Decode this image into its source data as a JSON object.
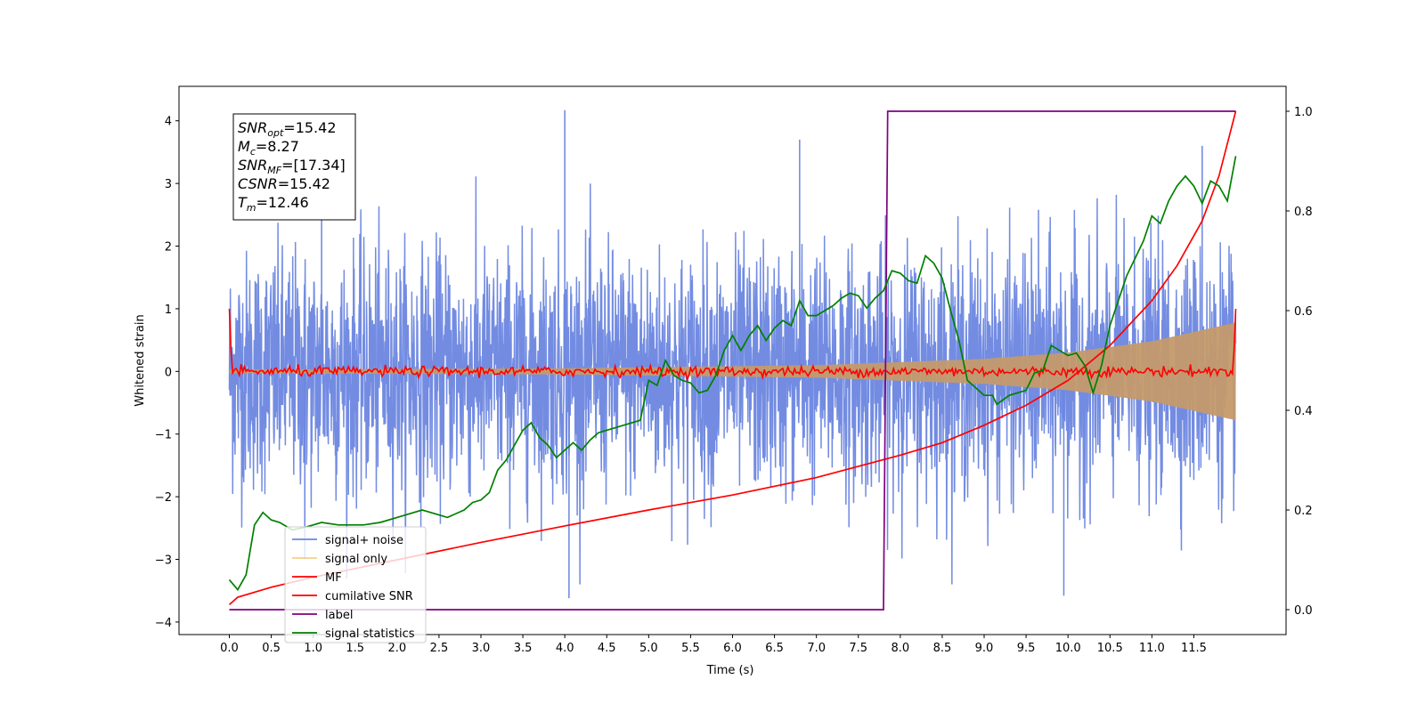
{
  "chart_data": {
    "type": "line",
    "title": "",
    "xlabel": "Time (s)",
    "ylabel": "Whitened strain",
    "y2label": "",
    "xlim": [
      -0.6,
      12.6
    ],
    "ylim": [
      -4.2,
      4.55
    ],
    "y2lim": [
      -0.05,
      1.05
    ],
    "xticks": [
      0.0,
      0.5,
      1.0,
      1.5,
      2.0,
      2.5,
      3.0,
      3.5,
      4.0,
      4.5,
      5.0,
      5.5,
      6.0,
      6.5,
      7.0,
      7.5,
      8.0,
      8.5,
      9.0,
      9.5,
      10.0,
      10.5,
      11.0,
      11.5
    ],
    "xtick_labels": [
      "0.0",
      "0.5",
      "1.0",
      "1.5",
      "2.0",
      "2.5",
      "3.0",
      "3.5",
      "4.0",
      "4.5",
      "5.0",
      "5.5",
      "6.0",
      "6.5",
      "7.0",
      "7.5",
      "8.0",
      "8.5",
      "9.0",
      "9.5",
      "10.0",
      "10.5",
      "11.0",
      "11.5"
    ],
    "yticks": [
      -4,
      -3,
      -2,
      -1,
      0,
      1,
      2,
      3,
      4
    ],
    "ytick_labels": [
      "−4",
      "−3",
      "−2",
      "−1",
      "0",
      "1",
      "2",
      "3",
      "4"
    ],
    "y2ticks": [
      0.0,
      0.2,
      0.4,
      0.6,
      0.8,
      1.0
    ],
    "y2tick_labels": [
      "0.0",
      "0.2",
      "0.4",
      "0.6",
      "0.8",
      "1.0"
    ],
    "grid": false,
    "legend_placement": "lower-left",
    "series": [
      {
        "name": "signal+ noise",
        "axis": "left",
        "color": "#6b86e0",
        "description_values": "dense noise band, typical range -2.5 to 2.5, spikes up to 4.17 at t=4.0 and down to -3.6",
        "noise_amplitude": 1.0,
        "peak_values": [
          [
            4.0,
            4.17
          ],
          [
            4.05,
            -3.62
          ],
          [
            9.95,
            -3.58
          ],
          [
            1.1,
            3.7
          ],
          [
            6.8,
            3.7
          ],
          [
            11.6,
            3.6
          ],
          [
            0.9,
            -3.0
          ]
        ]
      },
      {
        "name": "signal only",
        "axis": "left",
        "color": "#f2c36b",
        "envelope": [
          [
            0.0,
            0.03
          ],
          [
            4.0,
            0.05
          ],
          [
            7.0,
            0.1
          ],
          [
            9.0,
            0.2
          ],
          [
            10.0,
            0.3
          ],
          [
            11.0,
            0.48
          ],
          [
            12.0,
            0.78
          ]
        ]
      },
      {
        "name": "MF",
        "axis": "left",
        "color": "#ff0000",
        "points": [
          [
            0.0,
            1.0
          ],
          [
            0.03,
            0.0
          ],
          [
            11.97,
            0.0
          ],
          [
            12.0,
            1.0
          ]
        ],
        "noise_amplitude": 0.04
      },
      {
        "name": "cumilative SNR",
        "axis": "right",
        "color": "#ff0000",
        "points": [
          [
            0.0,
            0.01
          ],
          [
            0.1,
            0.025
          ],
          [
            0.5,
            0.045
          ],
          [
            1.0,
            0.065
          ],
          [
            2.0,
            0.1
          ],
          [
            3.0,
            0.135
          ],
          [
            4.0,
            0.168
          ],
          [
            5.0,
            0.2
          ],
          [
            6.0,
            0.23
          ],
          [
            7.0,
            0.265
          ],
          [
            8.0,
            0.31
          ],
          [
            8.5,
            0.335
          ],
          [
            9.0,
            0.37
          ],
          [
            9.5,
            0.41
          ],
          [
            10.0,
            0.46
          ],
          [
            10.5,
            0.53
          ],
          [
            11.0,
            0.62
          ],
          [
            11.3,
            0.69
          ],
          [
            11.6,
            0.78
          ],
          [
            11.8,
            0.87
          ],
          [
            12.0,
            1.0
          ]
        ]
      },
      {
        "name": "label",
        "axis": "right",
        "color": "#800080",
        "points": [
          [
            0.0,
            0.0
          ],
          [
            7.8,
            0.0
          ],
          [
            7.85,
            1.0
          ],
          [
            12.0,
            1.0
          ]
        ]
      },
      {
        "name": "signal statistics",
        "axis": "right",
        "color": "#008000",
        "points": [
          [
            0.0,
            0.06
          ],
          [
            0.1,
            0.04
          ],
          [
            0.2,
            0.07
          ],
          [
            0.3,
            0.17
          ],
          [
            0.4,
            0.195
          ],
          [
            0.5,
            0.18
          ],
          [
            0.6,
            0.175
          ],
          [
            0.75,
            0.16
          ],
          [
            0.9,
            0.165
          ],
          [
            1.0,
            0.17
          ],
          [
            1.1,
            0.175
          ],
          [
            1.3,
            0.17
          ],
          [
            1.6,
            0.17
          ],
          [
            1.8,
            0.175
          ],
          [
            2.0,
            0.185
          ],
          [
            2.2,
            0.195
          ],
          [
            2.3,
            0.2
          ],
          [
            2.5,
            0.19
          ],
          [
            2.6,
            0.185
          ],
          [
            2.8,
            0.2
          ],
          [
            2.9,
            0.215
          ],
          [
            3.0,
            0.22
          ],
          [
            3.1,
            0.235
          ],
          [
            3.2,
            0.28
          ],
          [
            3.3,
            0.3
          ],
          [
            3.5,
            0.36
          ],
          [
            3.6,
            0.375
          ],
          [
            3.7,
            0.345
          ],
          [
            3.8,
            0.33
          ],
          [
            3.9,
            0.305
          ],
          [
            4.0,
            0.32
          ],
          [
            4.1,
            0.335
          ],
          [
            4.2,
            0.32
          ],
          [
            4.3,
            0.34
          ],
          [
            4.4,
            0.355
          ],
          [
            4.5,
            0.36
          ],
          [
            4.7,
            0.37
          ],
          [
            4.9,
            0.38
          ],
          [
            5.0,
            0.46
          ],
          [
            5.1,
            0.45
          ],
          [
            5.2,
            0.5
          ],
          [
            5.3,
            0.47
          ],
          [
            5.4,
            0.46
          ],
          [
            5.5,
            0.455
          ],
          [
            5.6,
            0.435
          ],
          [
            5.7,
            0.44
          ],
          [
            5.8,
            0.47
          ],
          [
            5.9,
            0.52
          ],
          [
            6.0,
            0.55
          ],
          [
            6.1,
            0.52
          ],
          [
            6.2,
            0.55
          ],
          [
            6.3,
            0.57
          ],
          [
            6.4,
            0.54
          ],
          [
            6.5,
            0.565
          ],
          [
            6.6,
            0.58
          ],
          [
            6.7,
            0.57
          ],
          [
            6.8,
            0.62
          ],
          [
            6.9,
            0.59
          ],
          [
            7.0,
            0.59
          ],
          [
            7.1,
            0.6
          ],
          [
            7.2,
            0.61
          ],
          [
            7.3,
            0.625
          ],
          [
            7.4,
            0.635
          ],
          [
            7.5,
            0.63
          ],
          [
            7.6,
            0.605
          ],
          [
            7.7,
            0.625
          ],
          [
            7.8,
            0.64
          ],
          [
            7.9,
            0.68
          ],
          [
            8.0,
            0.675
          ],
          [
            8.1,
            0.66
          ],
          [
            8.2,
            0.655
          ],
          [
            8.3,
            0.71
          ],
          [
            8.4,
            0.695
          ],
          [
            8.5,
            0.665
          ],
          [
            8.6,
            0.6
          ],
          [
            8.7,
            0.54
          ],
          [
            8.8,
            0.46
          ],
          [
            8.9,
            0.445
          ],
          [
            9.0,
            0.43
          ],
          [
            9.1,
            0.43
          ],
          [
            9.15,
            0.412
          ],
          [
            9.3,
            0.43
          ],
          [
            9.5,
            0.44
          ],
          [
            9.6,
            0.475
          ],
          [
            9.7,
            0.48
          ],
          [
            9.8,
            0.53
          ],
          [
            9.9,
            0.52
          ],
          [
            10.0,
            0.51
          ],
          [
            10.1,
            0.515
          ],
          [
            10.2,
            0.49
          ],
          [
            10.3,
            0.435
          ],
          [
            10.4,
            0.49
          ],
          [
            10.5,
            0.57
          ],
          [
            10.6,
            0.62
          ],
          [
            10.7,
            0.67
          ],
          [
            10.8,
            0.705
          ],
          [
            10.9,
            0.74
          ],
          [
            11.0,
            0.79
          ],
          [
            11.1,
            0.775
          ],
          [
            11.2,
            0.82
          ],
          [
            11.3,
            0.85
          ],
          [
            11.4,
            0.87
          ],
          [
            11.5,
            0.85
          ],
          [
            11.6,
            0.815
          ],
          [
            11.7,
            0.86
          ],
          [
            11.8,
            0.85
          ],
          [
            11.9,
            0.82
          ],
          [
            12.0,
            0.91
          ]
        ]
      }
    ],
    "annotation": {
      "lines": [
        {
          "symbol": "SNR",
          "sub": "opt",
          "value": "=15.42"
        },
        {
          "symbol": "M",
          "sub": "c",
          "value": "=8.27"
        },
        {
          "symbol": "SNR",
          "sub": "MF",
          "value": "=[17.34]"
        },
        {
          "symbol": "CSNR",
          "sub": "",
          "value": "=15.42"
        },
        {
          "symbol": "T",
          "sub": "m",
          "value": "=12.46"
        }
      ]
    }
  }
}
